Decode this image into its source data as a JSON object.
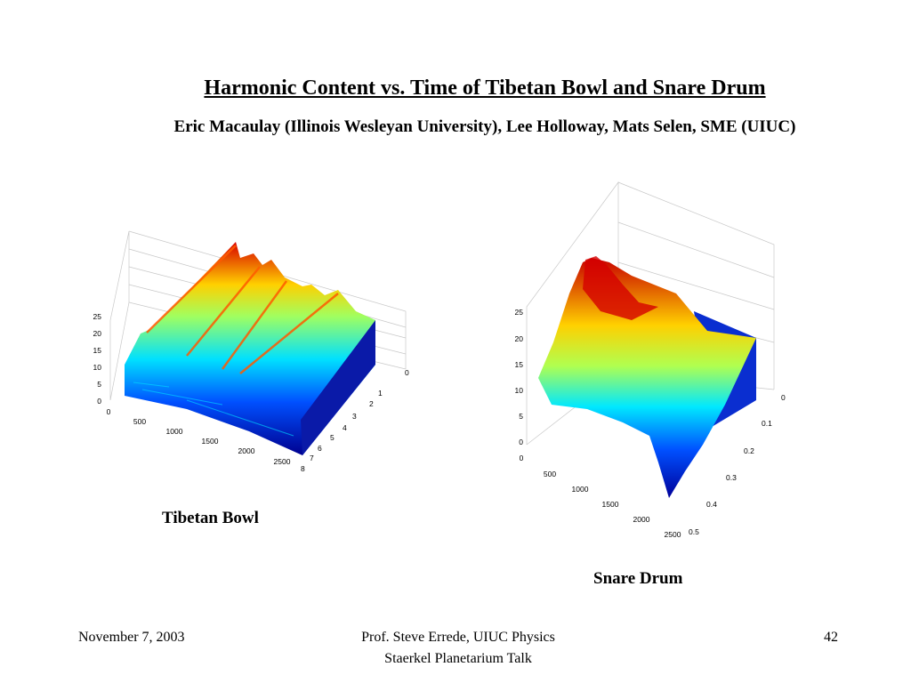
{
  "slide": {
    "title": "Harmonic Content vs. Time of Tibetan Bowl and Snare Drum",
    "subtitle": "Eric Macaulay (Illinois Wesleyan University), Lee Holloway, Mats Selen, SME (UIUC)",
    "footer_date": "November 7, 2003",
    "footer_author": "Prof. Steve Errede, UIUC Physics",
    "footer_event": "Staerkel Planetarium Talk",
    "page_number": "42"
  },
  "plots": [
    {
      "caption": "Tibetan Bowl",
      "z_ticks": [
        "0",
        "5",
        "10",
        "15",
        "20",
        "25"
      ],
      "x_ticks": [
        "0",
        "500",
        "1000",
        "1500",
        "2000",
        "2500"
      ],
      "y_ticks": [
        "0",
        "1",
        "2",
        "3",
        "4",
        "5",
        "6",
        "7",
        "8"
      ]
    },
    {
      "caption": "Snare Drum",
      "z_ticks": [
        "0",
        "5",
        "10",
        "15",
        "20",
        "25"
      ],
      "x_ticks": [
        "0",
        "500",
        "1000",
        "1500",
        "2000",
        "2500"
      ],
      "y_ticks": [
        "0",
        "0.1",
        "0.2",
        "0.3",
        "0.4",
        "0.5"
      ]
    }
  ]
}
